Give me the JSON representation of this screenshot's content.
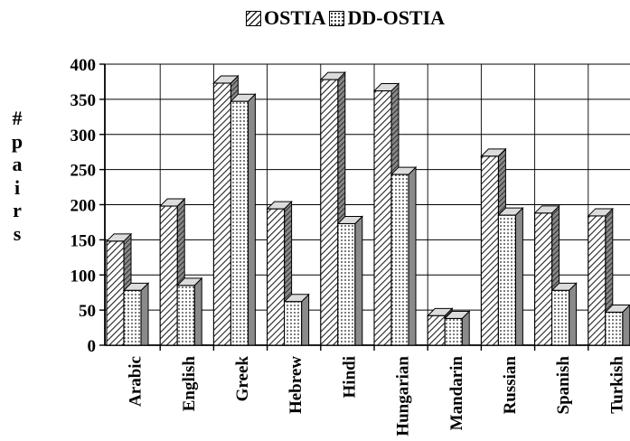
{
  "chart_data": {
    "type": "bar",
    "title": "",
    "ylabel_chars": [
      "#",
      "p",
      "a",
      "i",
      "r",
      "s"
    ],
    "xlabel": "",
    "categories": [
      "Arabic",
      "English",
      "Greek",
      "Hebrew",
      "Hindi",
      "Hungarian",
      "Mandarin",
      "Russian",
      "Spanish",
      "Turkish"
    ],
    "series": [
      {
        "name": "OSTIA",
        "pattern": "hatch",
        "values": [
          148,
          198,
          373,
          194,
          378,
          362,
          42,
          269,
          188,
          184
        ]
      },
      {
        "name": "DD-OSTIA",
        "pattern": "dots",
        "values": [
          78,
          85,
          347,
          62,
          173,
          243,
          38,
          185,
          78,
          47
        ]
      }
    ],
    "ylim": [
      0,
      400
    ],
    "yticks": [
      0,
      50,
      100,
      150,
      200,
      250,
      300,
      350,
      400
    ],
    "grid": true,
    "legend_position": "top-center",
    "colors": {
      "bar_fill": "#ffffff",
      "pattern": "#222222",
      "side": "#555555",
      "grid": "#000000"
    }
  }
}
